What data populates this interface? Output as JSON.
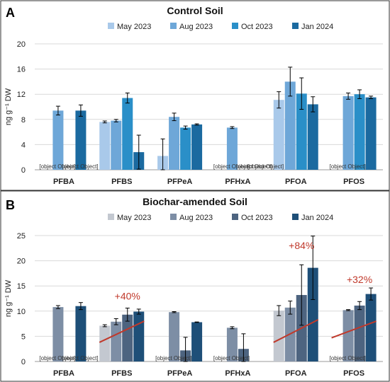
{
  "chart_data": [
    {
      "panel_label": "A",
      "type": "bar",
      "title": "Control Soil",
      "ylabel": "ng g⁻¹ DW",
      "ylim": [
        0,
        20
      ],
      "yticks": [
        "0",
        "4",
        "8",
        "12",
        "16",
        "20"
      ],
      "grid": true,
      "legend_position": "top",
      "categories": [
        "PFBA",
        "PFBS",
        "PFPeA",
        "PFHxA",
        "PFOA",
        "PFOS"
      ],
      "series": [
        {
          "name": "May 2023",
          "color": "#a9c9ea",
          "values": [
            null,
            7.6,
            2.2,
            null,
            11.1,
            null
          ],
          "errors": [
            null,
            0.15,
            2.7,
            null,
            1.3,
            null
          ]
        },
        {
          "name": "Aug 2023",
          "color": "#6ea7d8",
          "values": [
            9.4,
            7.8,
            8.4,
            6.7,
            14.0,
            11.7
          ],
          "errors": [
            0.7,
            0.2,
            0.6,
            0.15,
            2.3,
            0.5
          ]
        },
        {
          "name": "Oct 2023",
          "color": "#2a8fc8",
          "values": [
            null,
            11.4,
            6.7,
            null,
            12.1,
            12.0
          ],
          "errors": [
            null,
            0.8,
            0.25,
            null,
            2.5,
            0.7
          ]
        },
        {
          "name": "Jan 2024",
          "color": "#1b6aa0",
          "values": [
            9.4,
            2.8,
            7.2,
            null,
            10.4,
            11.5
          ],
          "errors": [
            0.9,
            2.7,
            0.1,
            null,
            1.2,
            0.2
          ]
        }
      ],
      "annotations": [
        {
          "category": "PFBA",
          "series": "May 2023",
          "text": "LOQ"
        },
        {
          "category": "PFBA",
          "series": "Oct 2023",
          "text": "LOD"
        },
        {
          "category": "PFHxA",
          "series": "May 2023",
          "text": "LOQ"
        },
        {
          "category": "PFHxA",
          "series": "Oct 2023",
          "text": "LOD"
        },
        {
          "category": "PFHxA",
          "series": "Jan 2024",
          "text": "LOD"
        },
        {
          "category": "PFOS",
          "series": "May 2023",
          "text": "LOQ"
        }
      ],
      "trends": []
    },
    {
      "panel_label": "B",
      "type": "bar",
      "title": "Biochar-amended Soil",
      "ylabel": "ng g⁻¹ DW",
      "ylim": [
        0,
        25
      ],
      "yticks": [
        "0",
        "5",
        "10",
        "15",
        "20",
        "25"
      ],
      "grid": true,
      "legend_position": "top",
      "categories": [
        "PFBA",
        "PFBS",
        "PFPeA",
        "PFHxA",
        "PFOA",
        "PFOS"
      ],
      "series": [
        {
          "name": "May 2023",
          "color": "#c3c8d0",
          "values": [
            null,
            7.1,
            null,
            null,
            10.1,
            null
          ],
          "errors": [
            null,
            0.2,
            null,
            null,
            1.0,
            null
          ]
        },
        {
          "name": "Aug 2023",
          "color": "#7d8ea5",
          "values": [
            10.8,
            7.9,
            9.8,
            6.7,
            10.7,
            10.2
          ],
          "errors": [
            0.3,
            0.6,
            0.1,
            0.2,
            1.3,
            0.1
          ]
        },
        {
          "name": "Oct 2023",
          "color": "#4d6480",
          "values": [
            null,
            9.3,
            2.2,
            2.5,
            13.2,
            11.1
          ],
          "errors": [
            null,
            1.3,
            2.6,
            3.0,
            6.0,
            0.8
          ]
        },
        {
          "name": "Jan 2024",
          "color": "#1e4f78",
          "values": [
            11.0,
            9.9,
            7.8,
            null,
            18.6,
            13.4
          ],
          "errors": [
            0.7,
            0.5,
            0.05,
            null,
            6.3,
            1.2
          ]
        }
      ],
      "annotations": [
        {
          "category": "PFBA",
          "series": "May 2023",
          "text": "LOQ"
        },
        {
          "category": "PFBA",
          "series": "Oct 2023",
          "text": "LOD"
        },
        {
          "category": "PFPeA",
          "series": "May 2023",
          "text": "LOQ"
        },
        {
          "category": "PFHxA",
          "series": "May 2023",
          "text": "LOQ"
        },
        {
          "category": "PFOS",
          "series": "May 2023",
          "text": "LOQ"
        }
      ],
      "trends": [
        {
          "category": "PFBS",
          "text": "+40%",
          "from": 3.8,
          "to": 8.0,
          "label_at": 13.0
        },
        {
          "category": "PFOA",
          "text": "+84%",
          "from": 3.8,
          "to": 8.3,
          "label_at": 23.0
        },
        {
          "category": "PFOS",
          "text": "+32%",
          "from": 4.7,
          "to": 8.0,
          "label_at": 16.3
        }
      ],
      "trend_color": "#c0392b"
    }
  ]
}
